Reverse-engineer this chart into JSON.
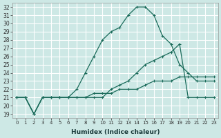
{
  "bg_color": "#cde8e5",
  "grid_color": "#ffffff",
  "line_color": "#1a6b5a",
  "xlabel": "Humidex (Indice chaleur)",
  "xlim": [
    -0.5,
    23.5
  ],
  "ylim": [
    18.5,
    32.5
  ],
  "xticks": [
    0,
    1,
    2,
    3,
    4,
    5,
    6,
    7,
    8,
    9,
    10,
    11,
    12,
    13,
    14,
    15,
    16,
    17,
    18,
    19,
    20,
    21,
    22,
    23
  ],
  "yticks": [
    19,
    20,
    21,
    22,
    23,
    24,
    25,
    26,
    27,
    28,
    29,
    30,
    31,
    32
  ],
  "line1_x": [
    0,
    1,
    2,
    3,
    4,
    5,
    6,
    7,
    8,
    9,
    10,
    11,
    12,
    13,
    14,
    15,
    16,
    17,
    18,
    19,
    20,
    21,
    22,
    23
  ],
  "line1_y": [
    21,
    21,
    19,
    21,
    21,
    21,
    21,
    22,
    24,
    26,
    28,
    29,
    29.5,
    31,
    32,
    32,
    31,
    28.5,
    27.5,
    25,
    24,
    23,
    23,
    23
  ],
  "line2_x": [
    0,
    1,
    2,
    3,
    4,
    5,
    6,
    7,
    8,
    9,
    10,
    11,
    12,
    13,
    14,
    15,
    16,
    17,
    18,
    19,
    20,
    21,
    22,
    23
  ],
  "line2_y": [
    21,
    21,
    19,
    21,
    21,
    21,
    21,
    21,
    21,
    21,
    21,
    22,
    22.5,
    23,
    24,
    25,
    25.5,
    26,
    26.5,
    27.5,
    21,
    21,
    21,
    21
  ],
  "line3_x": [
    0,
    1,
    2,
    3,
    4,
    5,
    6,
    7,
    8,
    9,
    10,
    11,
    12,
    13,
    14,
    15,
    16,
    17,
    18,
    19,
    20,
    21,
    22,
    23
  ],
  "line3_y": [
    21,
    21,
    19,
    21,
    21,
    21,
    21,
    21,
    21,
    21.5,
    21.5,
    21.5,
    22,
    22,
    22,
    22.5,
    23,
    23,
    23,
    23.5,
    23.5,
    23.5,
    23.5,
    23.5
  ]
}
